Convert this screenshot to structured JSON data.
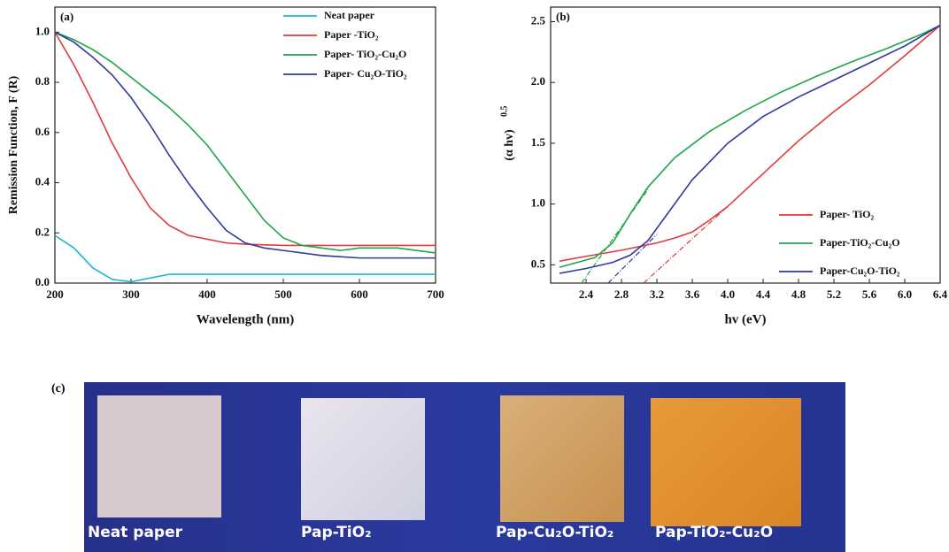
{
  "chart_data": [
    {
      "type": "line",
      "panel_label": "(a)",
      "x_label": "Wavelength (nm)",
      "y_label": "Remission Function, F (R)",
      "xlim": [
        200,
        700
      ],
      "ylim": [
        0,
        1.1
      ],
      "xticks": [
        200,
        300,
        400,
        500,
        600,
        700
      ],
      "yticks": [
        {
          "value": 0,
          "label": "0.0"
        },
        0.2,
        0.4,
        0.6,
        0.8,
        {
          "value": 1,
          "label": "1.0"
        }
      ],
      "legend": "upper right",
      "series": [
        {
          "name": "Neat paper",
          "color": "#1fb8d0",
          "x": [
            200,
            225,
            250,
            275,
            300,
            325,
            350,
            400,
            500,
            600,
            700
          ],
          "values": [
            0.19,
            0.14,
            0.06,
            0.015,
            0.005,
            0.02,
            0.035,
            0.035,
            0.035,
            0.035,
            0.035
          ]
        },
        {
          "name": "Paper -TiO₂",
          "color": "#e03a3a",
          "x": [
            200,
            225,
            250,
            275,
            300,
            325,
            350,
            375,
            400,
            425,
            450,
            500,
            550,
            600,
            650,
            700
          ],
          "values": [
            1.0,
            0.87,
            0.72,
            0.56,
            0.42,
            0.3,
            0.23,
            0.19,
            0.175,
            0.16,
            0.155,
            0.15,
            0.15,
            0.15,
            0.15,
            0.15
          ]
        },
        {
          "name": "Paper- TiO₂-Cu₂O",
          "color": "#1fa64a",
          "x": [
            200,
            225,
            250,
            275,
            300,
            325,
            350,
            375,
            400,
            425,
            450,
            475,
            500,
            525,
            550,
            575,
            600,
            650,
            700
          ],
          "values": [
            1.0,
            0.97,
            0.93,
            0.88,
            0.82,
            0.76,
            0.7,
            0.63,
            0.55,
            0.45,
            0.35,
            0.25,
            0.18,
            0.15,
            0.14,
            0.13,
            0.14,
            0.14,
            0.12
          ]
        },
        {
          "name": "Paper- Cu₂O-TiO₂",
          "color": "#2e3a9c",
          "x": [
            200,
            225,
            250,
            275,
            300,
            325,
            350,
            375,
            400,
            425,
            450,
            475,
            500,
            550,
            600,
            650,
            700
          ],
          "values": [
            1.0,
            0.96,
            0.9,
            0.83,
            0.74,
            0.63,
            0.51,
            0.4,
            0.3,
            0.21,
            0.16,
            0.14,
            0.13,
            0.11,
            0.1,
            0.1,
            0.1
          ]
        }
      ]
    },
    {
      "type": "line",
      "panel_label": "(b)",
      "x_label": "hv (eV)",
      "y_label": "(α hv)",
      "y_label_sup": "0.5",
      "xlim": [
        2.0,
        6.4
      ],
      "ylim": [
        0.35,
        2.62
      ],
      "xticks": [
        2.4,
        2.8,
        3.2,
        3.6,
        {
          "value": 4,
          "label": "4.0"
        },
        4.4,
        4.8,
        5.2,
        5.6,
        {
          "value": 6,
          "label": "6.0"
        },
        6.4
      ],
      "yticks": [
        0.5,
        {
          "value": 1,
          "label": "1.0"
        },
        1.5,
        {
          "value": 2,
          "label": "2.0"
        },
        2.5
      ],
      "legend": "lower right",
      "series": [
        {
          "name": "Paper- TiO₂",
          "color": "#e03a3a",
          "x": [
            2.1,
            2.4,
            2.8,
            3.2,
            3.4,
            3.6,
            3.8,
            4.0,
            4.4,
            4.8,
            5.2,
            5.6,
            6.0,
            6.4
          ],
          "values": [
            0.53,
            0.57,
            0.62,
            0.68,
            0.72,
            0.77,
            0.87,
            0.98,
            1.25,
            1.52,
            1.76,
            1.98,
            2.22,
            2.47
          ]
        },
        {
          "name": "Paper-TiO₂-Cu₂O",
          "color": "#1fa64a",
          "x": [
            2.1,
            2.3,
            2.5,
            2.7,
            2.9,
            3.1,
            3.4,
            3.8,
            4.2,
            4.6,
            5.0,
            5.4,
            5.8,
            6.2,
            6.4
          ],
          "values": [
            0.48,
            0.52,
            0.56,
            0.68,
            0.92,
            1.14,
            1.38,
            1.6,
            1.77,
            1.92,
            2.05,
            2.17,
            2.28,
            2.4,
            2.47
          ]
        },
        {
          "name": "Paper-Cu₂O-TiO₂",
          "color": "#2e3a9c",
          "x": [
            2.1,
            2.4,
            2.7,
            2.9,
            3.1,
            3.3,
            3.6,
            4.0,
            4.4,
            4.8,
            5.2,
            5.6,
            6.0,
            6.4
          ],
          "values": [
            0.43,
            0.47,
            0.52,
            0.58,
            0.7,
            0.9,
            1.2,
            1.5,
            1.72,
            1.88,
            2.02,
            2.16,
            2.3,
            2.47
          ]
        }
      ],
      "fit_lines": [
        {
          "color": "#e03a3a",
          "x": [
            3.05,
            4.0
          ],
          "values": [
            0.35,
            0.98
          ]
        },
        {
          "color": "#1fa64a",
          "x": [
            2.35,
            3.1
          ],
          "values": [
            0.35,
            1.12
          ]
        },
        {
          "color": "#2e3a9c",
          "x": [
            2.65,
            3.2
          ],
          "values": [
            0.35,
            0.75
          ]
        }
      ]
    }
  ],
  "photo": {
    "panel_label": "(c)",
    "samples": [
      "Neat paper",
      "Pap-TiO₂",
      "Pap-Cu₂O-TiO₂",
      "Pap-TiO₂-Cu₂O"
    ]
  }
}
